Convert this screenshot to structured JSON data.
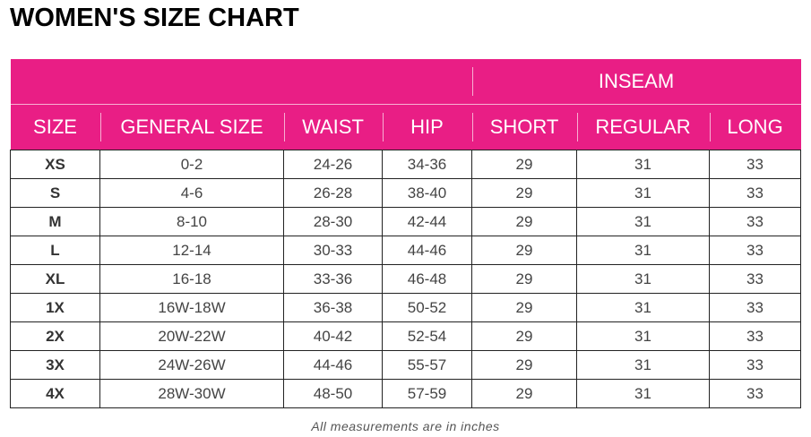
{
  "title": "WOMEN'S SIZE CHART",
  "group_header": "INSEAM",
  "columns": [
    "SIZE",
    "GENERAL SIZE",
    "WAIST",
    "HIP",
    "SHORT",
    "REGULAR",
    "LONG"
  ],
  "rows": [
    [
      "XS",
      "0-2",
      "24-26",
      "34-36",
      "29",
      "31",
      "33"
    ],
    [
      "S",
      "4-6",
      "26-28",
      "38-40",
      "29",
      "31",
      "33"
    ],
    [
      "M",
      "8-10",
      "28-30",
      "42-44",
      "29",
      "31",
      "33"
    ],
    [
      "L",
      "12-14",
      "30-33",
      "44-46",
      "29",
      "31",
      "33"
    ],
    [
      "XL",
      "16-18",
      "33-36",
      "46-48",
      "29",
      "31",
      "33"
    ],
    [
      "1X",
      "16W-18W",
      "36-38",
      "50-52",
      "29",
      "31",
      "33"
    ],
    [
      "2X",
      "20W-22W",
      "40-42",
      "52-54",
      "29",
      "31",
      "33"
    ],
    [
      "3X",
      "24W-26W",
      "44-46",
      "55-57",
      "29",
      "31",
      "33"
    ],
    [
      "4X",
      "28W-30W",
      "48-50",
      "57-59",
      "29",
      "31",
      "33"
    ]
  ],
  "note": "All measurements are in inches",
  "colors": {
    "header": "#e91e85"
  }
}
